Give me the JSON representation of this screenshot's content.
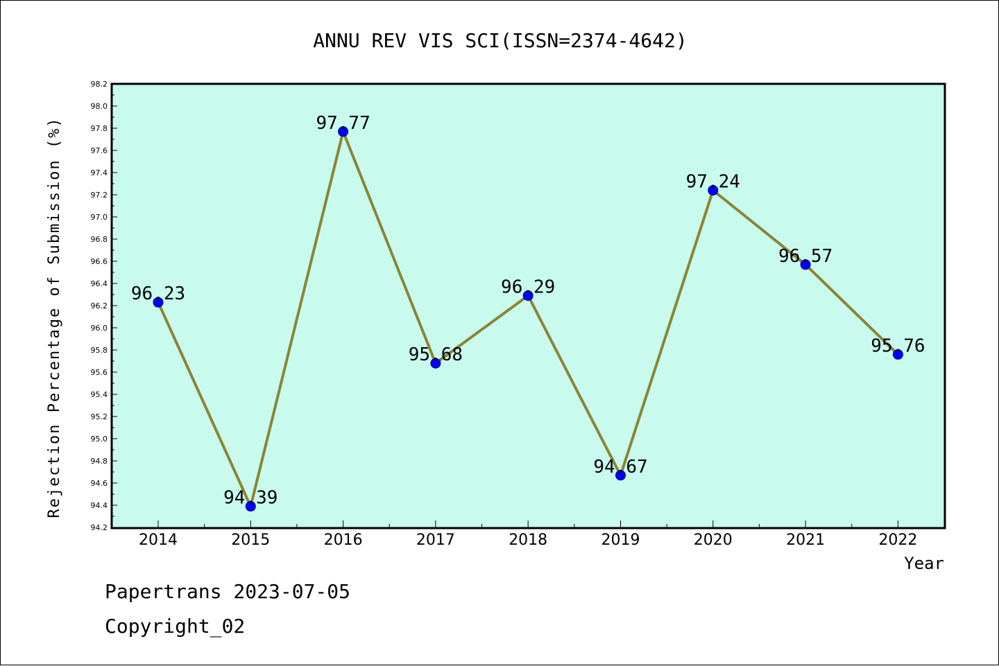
{
  "colors": {
    "plot_background": "#c8fbee",
    "line": "#8b8535",
    "marker": "#0000ff"
  },
  "chart_data": {
    "type": "line",
    "title": "ANNU REV VIS SCI(ISSN=2374-4642)",
    "xlabel": "Year",
    "ylabel": "Rejection Percentage of Submission (%)",
    "categories": [
      "2014",
      "2015",
      "2016",
      "2017",
      "2018",
      "2019",
      "2020",
      "2021",
      "2022"
    ],
    "values": [
      96.23,
      94.39,
      97.77,
      95.68,
      96.29,
      94.67,
      97.24,
      96.57,
      95.76
    ],
    "data_labels": [
      "96.23",
      "94.39",
      "97.77",
      "95.68",
      "96.29",
      "94.67",
      "97.24",
      "96.57",
      "95.76"
    ],
    "ylim": [
      94.2,
      98.2
    ],
    "yticks": [
      "94.2",
      "94.4",
      "94.6",
      "94.8",
      "95.0",
      "95.2",
      "95.4",
      "95.6",
      "95.8",
      "96.0",
      "96.2",
      "96.4",
      "96.6",
      "96.8",
      "97.0",
      "97.2",
      "97.4",
      "97.6",
      "97.8",
      "98.0",
      "98.2"
    ],
    "grid": false,
    "legend": "none"
  },
  "footer": {
    "line1": "Papertrans 2023-07-05",
    "line2": "Copyright_02"
  }
}
